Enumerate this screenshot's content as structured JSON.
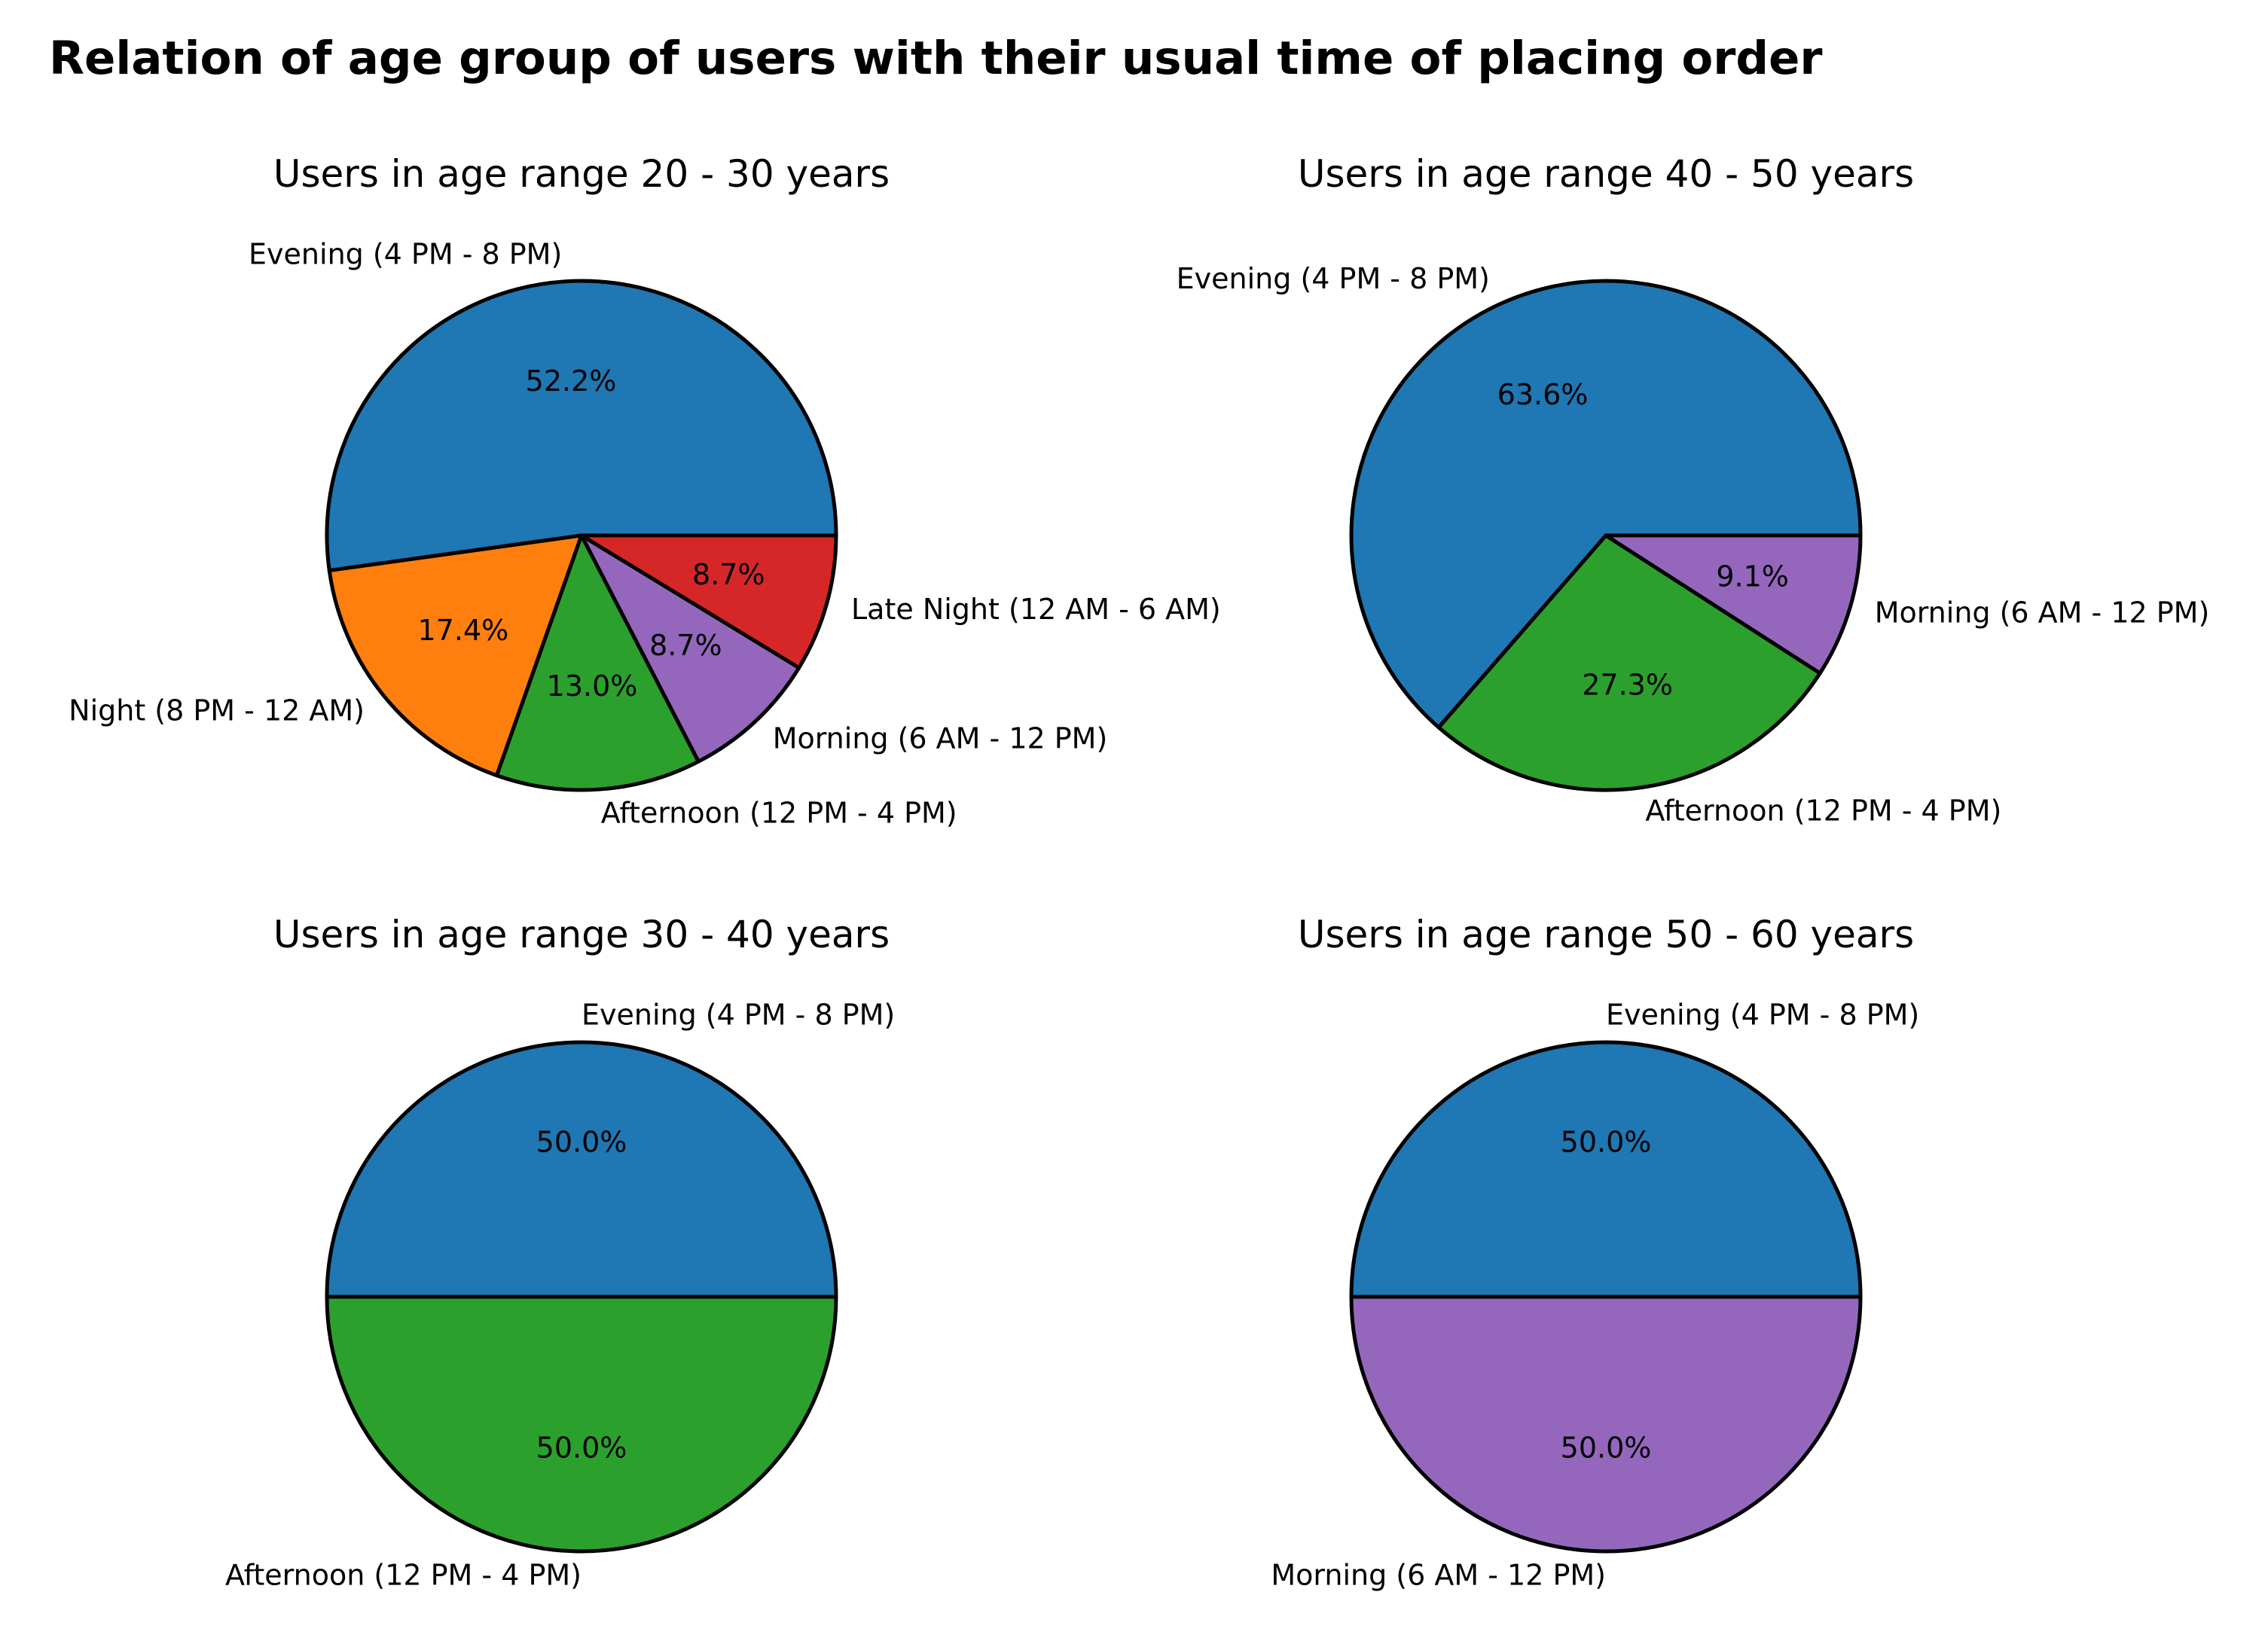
{
  "chart_data": {
    "title": "Relation of age group of users with their usual time of placing order",
    "charts": [
      {
        "type": "pie",
        "title": "Users in age range 20 - 30 years",
        "slices": [
          {
            "label": "Evening (4 PM - 8 PM)",
            "pct_label": "52.2%",
            "value": 52.2,
            "color": "#1f77b4"
          },
          {
            "label": "Night (8 PM - 12 AM)",
            "pct_label": "17.4%",
            "value": 17.4,
            "color": "#ff7f0e"
          },
          {
            "label": "Afternoon (12 PM - 4 PM)",
            "pct_label": "13.0%",
            "value": 13.0,
            "color": "#2ca02c"
          },
          {
            "label": "Morning (6 AM - 12 PM)",
            "pct_label": "8.7%",
            "value": 8.7,
            "color": "#9467bd"
          },
          {
            "label": "Late Night (12 AM - 6 AM)",
            "pct_label": "8.7%",
            "value": 8.7,
            "color": "#d62728"
          }
        ]
      },
      {
        "type": "pie",
        "title": "Users in age range 40 - 50 years",
        "slices": [
          {
            "label": "Evening (4 PM - 8 PM)",
            "pct_label": "63.6%",
            "value": 63.6,
            "color": "#1f77b4"
          },
          {
            "label": "Afternoon (12 PM - 4 PM)",
            "pct_label": "27.3%",
            "value": 27.3,
            "color": "#2ca02c"
          },
          {
            "label": "Morning (6 AM - 12 PM)",
            "pct_label": "9.1%",
            "value": 9.1,
            "color": "#9467bd"
          }
        ]
      },
      {
        "type": "pie",
        "title": "Users in age range 30 - 40 years",
        "slices": [
          {
            "label": "Evening (4 PM - 8 PM)",
            "pct_label": "50.0%",
            "value": 50.0,
            "color": "#1f77b4"
          },
          {
            "label": "Afternoon (12 PM - 4 PM)",
            "pct_label": "50.0%",
            "value": 50.0,
            "color": "#2ca02c"
          }
        ]
      },
      {
        "type": "pie",
        "title": "Users in age range 50 - 60 years",
        "slices": [
          {
            "label": "Evening (4 PM - 8 PM)",
            "pct_label": "50.0%",
            "value": 50.0,
            "color": "#1f77b4"
          },
          {
            "label": "Morning (6 AM - 12 PM)",
            "pct_label": "50.0%",
            "value": 50.0,
            "color": "#9467bd"
          }
        ]
      }
    ]
  }
}
